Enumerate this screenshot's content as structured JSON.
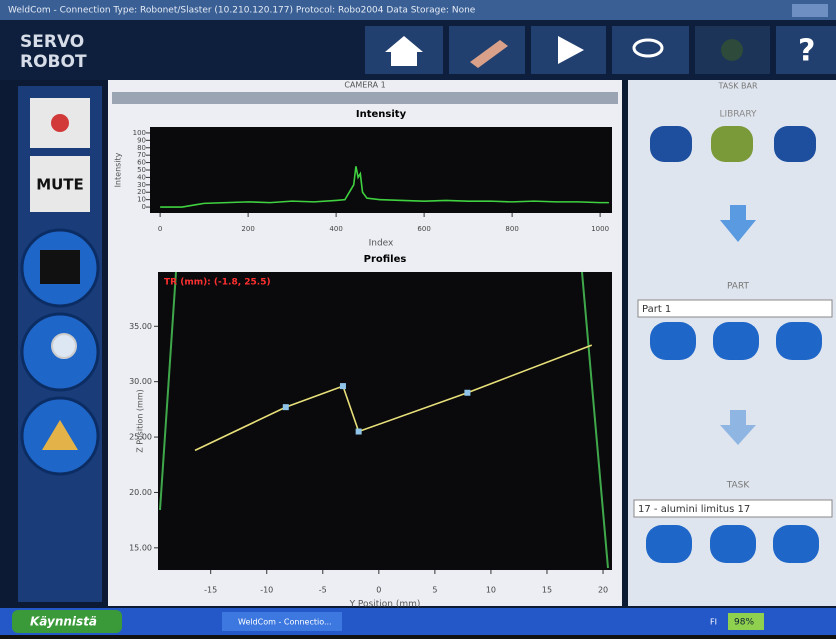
{
  "window": {
    "title": "WeldCom - Connection Type: Robonet/Slaster (10.210.120.177)   Protocol: Robo2004   Data Storage: None"
  },
  "logo": [
    "SERVO",
    "ROBOT"
  ],
  "sidebar": {
    "mute": "MUTE"
  },
  "camera_panel": {
    "title": "CAMERA 1"
  },
  "chart_data": [
    {
      "type": "line",
      "title": "Intensity",
      "x_label": "Index",
      "y_label": "Intensity",
      "x": [
        0,
        50,
        80,
        100,
        150,
        200,
        250,
        300,
        350,
        400,
        420,
        440,
        445,
        450,
        455,
        460,
        470,
        500,
        550,
        600,
        650,
        700,
        750,
        800,
        850,
        900,
        950,
        1000,
        1020
      ],
      "values": [
        0,
        0,
        3,
        5,
        6,
        7,
        6,
        8,
        7,
        9,
        10,
        30,
        55,
        40,
        45,
        20,
        12,
        10,
        9,
        8,
        9,
        8,
        8,
        7,
        8,
        7,
        7,
        6,
        6
      ],
      "color": "#3fd13f",
      "xlim": [
        -23,
        1027
      ],
      "ylim": [
        -8,
        108
      ],
      "xticks": [
        0,
        200,
        400,
        600,
        800,
        1000
      ],
      "yticks": [
        0,
        10,
        20,
        30,
        40,
        50,
        60,
        70,
        80,
        90,
        100
      ]
    },
    {
      "type": "line",
      "title": "Profiles",
      "annotation": "TR (mm): (-1.8, 25.5)",
      "x_label": "Y Position (mm)",
      "y_label": "Z Position (mm)",
      "x": [
        -16.4,
        -8.3,
        -3.2,
        -1.8,
        7.9,
        19.0
      ],
      "values": [
        23.8,
        27.7,
        29.6,
        25.5,
        29.0,
        33.3
      ],
      "color": "#e8e07a",
      "markers": {
        "x": [
          -8.3,
          -3.2,
          -1.8,
          7.9
        ],
        "values": [
          27.7,
          29.6,
          25.5,
          29.0
        ],
        "color": "#8fc3e8"
      },
      "xlim": [
        -19.7,
        20.8
      ],
      "ylim": [
        13,
        39.9
      ],
      "xticks": [
        -15,
        -10,
        -5,
        0,
        5,
        10,
        15,
        20
      ],
      "yticks": [
        {
          "value": 15,
          "label": "15.00"
        },
        {
          "value": 20,
          "label": "20.00"
        },
        {
          "value": 25,
          "label": "25.00"
        },
        {
          "value": 30,
          "label": "30.00"
        },
        {
          "value": 35,
          "label": "35.00"
        }
      ]
    }
  ],
  "task_bar": {
    "title": "TASK BAR",
    "library": "LIBRARY",
    "part": "PART",
    "part_select": "Part 1",
    "task": "TASK",
    "task_select": "17 - alumini limitus 17"
  },
  "os_taskbar": {
    "start": "Käynnistä",
    "window": "WeldCom - Connectio...",
    "battery": "98%",
    "language": "FI"
  }
}
